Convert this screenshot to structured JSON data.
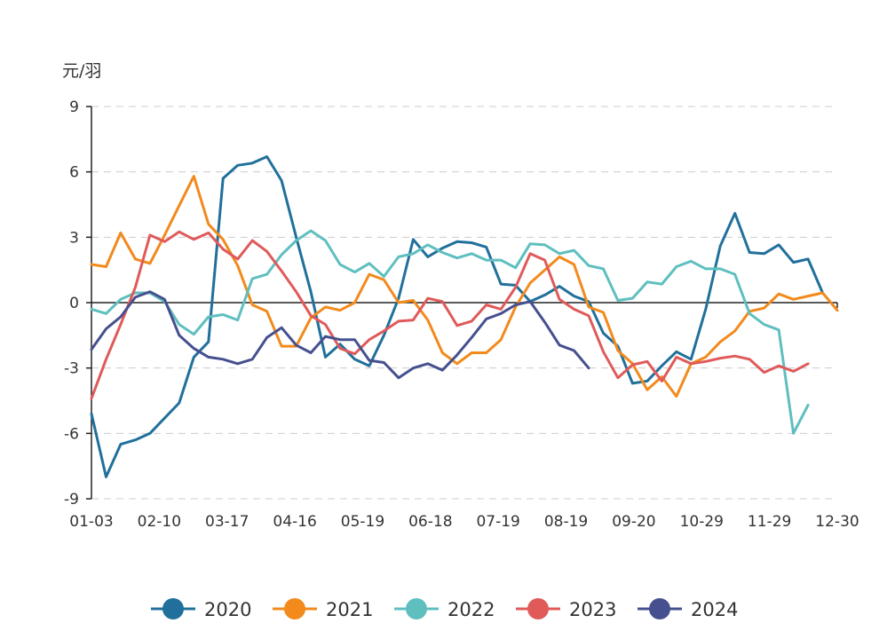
{
  "chart_data": {
    "type": "line",
    "ylabel": "元/羽",
    "ylim": [
      -9,
      9
    ],
    "yticks": [
      "9",
      "6",
      "3",
      "0",
      "-3",
      "-6",
      "-9"
    ],
    "x_range": [
      1,
      52
    ],
    "x_tick_labels": [
      "01-03",
      "02-10",
      "03-17",
      "04-16",
      "05-19",
      "06-18",
      "07-19",
      "08-19",
      "09-20",
      "10-29",
      "11-29",
      "12-30"
    ],
    "grid": "horizontal dashed",
    "legend_position": "bottom",
    "colors": [
      "#21709b",
      "#f28a1c",
      "#5fbfbf",
      "#e05a5a",
      "#46508e"
    ],
    "series": [
      {
        "name": "2020",
        "values": [
          -5.1,
          -8.0,
          -6.5,
          -6.3,
          -6.0,
          -5.3,
          -4.6,
          -2.5,
          -1.8,
          5.7,
          6.3,
          6.4,
          6.7,
          5.6,
          3.0,
          0.5,
          -2.5,
          -1.9,
          -2.6,
          -2.9,
          -1.5,
          0.2,
          2.9,
          2.1,
          2.5,
          2.8,
          2.75,
          2.55,
          0.85,
          0.8,
          0.05,
          0.35,
          0.75,
          0.3,
          0.05,
          -1.4,
          -2.0,
          -3.7,
          -3.6,
          -2.9,
          -2.25,
          -2.6,
          -0.3,
          2.6,
          4.1,
          2.3,
          2.25,
          2.65,
          1.85,
          2.0,
          0.45
        ]
      },
      {
        "name": "2021",
        "values": [
          1.75,
          1.65,
          3.2,
          2.0,
          1.8,
          3.1,
          4.45,
          5.8,
          3.6,
          2.9,
          1.7,
          -0.1,
          -0.4,
          -2.0,
          -2.0,
          -0.7,
          -0.2,
          -0.35,
          0.0,
          1.3,
          1.05,
          0.0,
          0.1,
          -0.8,
          -2.3,
          -2.8,
          -2.3,
          -2.3,
          -1.7,
          -0.2,
          0.9,
          1.5,
          2.1,
          1.75,
          -0.2,
          -0.45,
          -2.2,
          -2.8,
          -4.0,
          -3.4,
          -4.3,
          -2.8,
          -2.5,
          -1.8,
          -1.3,
          -0.4,
          -0.25,
          0.4,
          0.15,
          0.3,
          0.45,
          -0.35
        ]
      },
      {
        "name": "2022",
        "values": [
          -0.3,
          -0.5,
          0.15,
          0.45,
          0.45,
          0.05,
          -1.0,
          -1.45,
          -0.65,
          -0.55,
          -0.8,
          1.1,
          1.3,
          2.2,
          2.85,
          3.3,
          2.85,
          1.75,
          1.4,
          1.8,
          1.2,
          2.1,
          2.25,
          2.65,
          2.3,
          2.05,
          2.25,
          1.95,
          1.95,
          1.6,
          2.7,
          2.65,
          2.25,
          2.4,
          1.7,
          1.55,
          0.1,
          0.2,
          0.95,
          0.85,
          1.65,
          1.9,
          1.55,
          1.55,
          1.3,
          -0.5,
          -1.0,
          -1.25,
          -6.0,
          -4.7
        ]
      },
      {
        "name": "2023",
        "values": [
          -4.4,
          -2.6,
          -1.0,
          0.7,
          3.1,
          2.8,
          3.25,
          2.9,
          3.2,
          2.45,
          2.0,
          2.85,
          2.35,
          1.45,
          0.5,
          -0.6,
          -1.0,
          -2.1,
          -2.35,
          -1.7,
          -1.3,
          -0.85,
          -0.8,
          0.2,
          0.05,
          -1.05,
          -0.85,
          -0.1,
          -0.3,
          0.7,
          2.25,
          1.95,
          0.15,
          -0.3,
          -0.6,
          -2.25,
          -3.45,
          -2.85,
          -2.7,
          -3.6,
          -2.5,
          -2.8,
          -2.7,
          -2.55,
          -2.45,
          -2.6,
          -3.2,
          -2.9,
          -3.15,
          -2.8
        ]
      },
      {
        "name": "2024",
        "values": [
          -2.15,
          -1.2,
          -0.65,
          0.25,
          0.5,
          0.15,
          -1.5,
          -2.1,
          -2.5,
          -2.6,
          -2.8,
          -2.6,
          -1.6,
          -1.15,
          -1.95,
          -2.3,
          -1.55,
          -1.7,
          -1.7,
          -2.65,
          -2.75,
          -3.45,
          -3.0,
          -2.8,
          -3.1,
          -2.4,
          -1.6,
          -0.75,
          -0.5,
          -0.1,
          0.05,
          -0.9,
          -1.95,
          -2.2,
          -3.0
        ]
      }
    ]
  }
}
